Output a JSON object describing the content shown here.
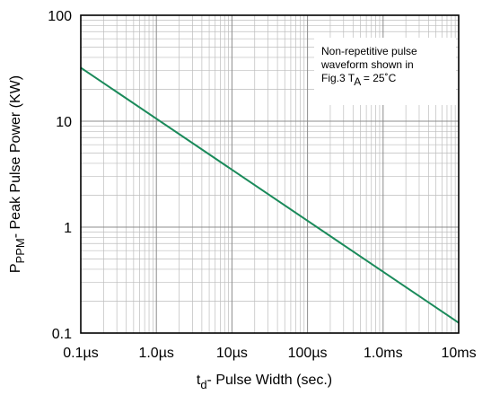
{
  "chart_data": {
    "type": "line",
    "xscale": "log",
    "yscale": "log",
    "xlim": [
      1e-07,
      0.01
    ],
    "ylim": [
      0.1,
      100
    ],
    "grid": true,
    "x_ticks": [
      {
        "value": 1e-07,
        "label": "0.1µs"
      },
      {
        "value": 1e-06,
        "label": "1.0µs"
      },
      {
        "value": 1e-05,
        "label": "10µs"
      },
      {
        "value": 0.0001,
        "label": "100µs"
      },
      {
        "value": 0.001,
        "label": "1.0ms"
      },
      {
        "value": 0.01,
        "label": "10ms"
      }
    ],
    "y_ticks": [
      {
        "value": 0.1,
        "label": "0.1"
      },
      {
        "value": 1,
        "label": "1"
      },
      {
        "value": 10,
        "label": "10"
      },
      {
        "value": 100,
        "label": "100"
      }
    ],
    "xlabel": {
      "main": "t",
      "sub": "d",
      "rest": "- Pulse Width (sec.)"
    },
    "ylabel": {
      "main": "P",
      "sub": "PPM",
      "rest": "- Peak Pulse Power (KW)"
    },
    "series": [
      {
        "color": "#1a8a5a",
        "points": [
          [
            1e-07,
            32
          ],
          [
            0.01,
            0.125
          ]
        ]
      }
    ],
    "annotation": {
      "lines": [
        "Non-repetitive pulse",
        "waveform shown in"
      ],
      "line3": {
        "prefix": "Fig.3 T",
        "sub": "A",
        "suffix": " = 25˚C"
      },
      "position": "top-right"
    }
  }
}
